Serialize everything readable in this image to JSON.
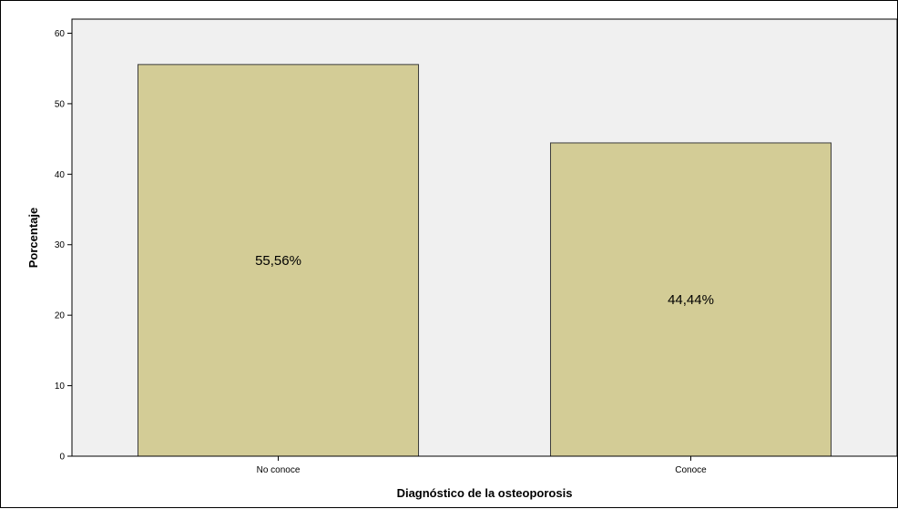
{
  "chart_data": {
    "type": "bar",
    "categories": [
      "No conoce",
      "Conoce"
    ],
    "values": [
      55.56,
      44.44
    ],
    "data_labels": [
      "55,56%",
      "44,44%"
    ],
    "xlabel": "Diagnóstico de la osteoporosis",
    "ylabel": "Porcentaje",
    "ylim": [
      0,
      62
    ],
    "yticks": [
      0,
      10,
      20,
      30,
      40,
      50,
      60
    ],
    "grid": false,
    "colors": {
      "bar_fill": "#d3cc96",
      "bar_stroke": "#3b3b3b",
      "plot_background": "#f0f0f0"
    }
  }
}
